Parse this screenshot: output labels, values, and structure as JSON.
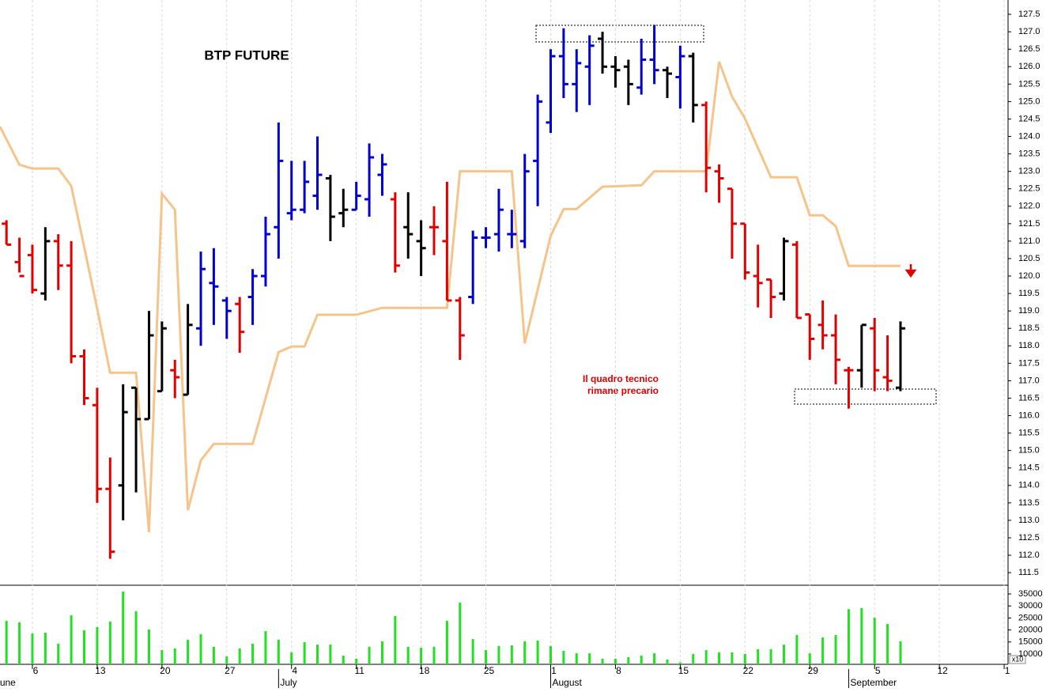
{
  "chart_data": [
    {
      "type": "ohlc",
      "title": "BTP FUTURE",
      "annotation": [
        "Il quadro tecnico",
        "rimane precario"
      ],
      "x": [
        -2,
        -1,
        0,
        1,
        2,
        3,
        4,
        5,
        6,
        7,
        8,
        9,
        10,
        11,
        12,
        13,
        14,
        15,
        16,
        17,
        18,
        19,
        20,
        21,
        22,
        23,
        24,
        25,
        26,
        27,
        28,
        29,
        30,
        31,
        32,
        33,
        34,
        35,
        36,
        37,
        38,
        39,
        40,
        41,
        42,
        43,
        44,
        45,
        46,
        47,
        48,
        49,
        50,
        51,
        52,
        53,
        54,
        55,
        56,
        57,
        58,
        59,
        60,
        61,
        62,
        63,
        64,
        65,
        66,
        67
      ],
      "open": [
        121.5,
        120.4,
        120.6,
        119.5,
        121.0,
        120.3,
        117.7,
        116.3,
        113.9,
        114.0,
        116.8,
        115.9,
        116.7,
        117.3,
        116.6,
        118.5,
        119.8,
        119.3,
        119.2,
        119.4,
        120.0,
        121.4,
        121.8,
        121.9,
        122.3,
        122.8,
        121.8,
        121.9,
        122.2,
        122.9,
        122.2,
        121.4,
        121.0,
        121.4,
        121.0,
        119.3,
        119.4,
        121.1,
        121.2,
        121.2,
        121.0,
        123.3,
        124.4,
        126.3,
        125.5,
        126.0,
        126.8,
        126.0,
        126.0,
        125.4,
        126.2,
        125.9,
        125.7,
        126.3,
        124.9,
        123.0,
        122.5,
        121.5,
        120.0,
        119.9,
        119.5,
        120.9,
        118.9,
        118.6,
        118.3,
        117.3,
        117.3,
        118.5,
        117.1,
        116.8
      ],
      "high": [
        121.6,
        121.1,
        120.9,
        121.4,
        121.2,
        121.0,
        117.9,
        116.8,
        114.8,
        116.9,
        116.8,
        119.0,
        118.7,
        117.6,
        119.2,
        120.7,
        120.8,
        119.4,
        119.4,
        120.2,
        121.7,
        124.4,
        123.3,
        123.3,
        124.0,
        122.9,
        122.5,
        122.7,
        123.8,
        123.5,
        122.4,
        122.4,
        121.6,
        122.0,
        122.7,
        119.4,
        121.3,
        121.4,
        122.5,
        121.9,
        123.5,
        125.2,
        126.5,
        127.1,
        126.5,
        126.9,
        127.0,
        126.3,
        126.2,
        126.8,
        127.2,
        126.0,
        126.6,
        126.4,
        125.0,
        123.2,
        122.5,
        121.5,
        120.9,
        119.9,
        121.1,
        121.0,
        118.9,
        119.3,
        118.9,
        117.4,
        118.6,
        118.8,
        118.3,
        118.7
      ],
      "low": [
        120.9,
        120.1,
        119.5,
        119.3,
        119.6,
        117.5,
        116.3,
        113.5,
        111.9,
        113.0,
        113.8,
        115.9,
        116.7,
        116.5,
        116.6,
        118.0,
        118.6,
        118.2,
        117.8,
        118.6,
        119.7,
        120.5,
        121.6,
        121.8,
        121.9,
        121.0,
        121.4,
        121.9,
        121.7,
        122.3,
        120.1,
        120.5,
        120.0,
        120.6,
        119.3,
        117.6,
        119.2,
        120.8,
        120.7,
        120.8,
        120.8,
        122.0,
        124.1,
        125.1,
        124.7,
        124.9,
        125.8,
        125.4,
        124.9,
        125.2,
        125.5,
        125.1,
        124.8,
        124.4,
        122.4,
        122.1,
        120.5,
        119.9,
        119.1,
        118.8,
        119.3,
        118.8,
        117.6,
        117.9,
        116.9,
        116.2,
        116.8,
        116.7,
        116.7,
        116.7
      ],
      "close": [
        120.9,
        120.0,
        119.6,
        121.0,
        120.3,
        117.7,
        116.5,
        113.9,
        112.1,
        116.1,
        115.9,
        118.3,
        118.5,
        117.1,
        118.6,
        120.2,
        119.7,
        119.0,
        118.4,
        120.0,
        121.2,
        123.3,
        121.9,
        122.7,
        122.9,
        121.7,
        121.9,
        122.3,
        123.4,
        123.2,
        120.3,
        121.2,
        120.8,
        121.4,
        119.3,
        118.3,
        121.1,
        121.1,
        121.9,
        121.2,
        123.0,
        125.0,
        126.3,
        125.5,
        126.1,
        126.6,
        126.0,
        125.9,
        125.5,
        126.2,
        125.9,
        125.8,
        126.3,
        124.9,
        123.1,
        122.8,
        121.5,
        120.1,
        119.8,
        119.4,
        121.0,
        118.8,
        118.2,
        118.3,
        117.6,
        117.3,
        118.6,
        117.3,
        117.0,
        118.5
      ],
      "colors": [
        "#e00000",
        "#e00000",
        "#e00000",
        "#000000",
        "#e00000",
        "#e00000",
        "#e00000",
        "#e00000",
        "#e00000",
        "#000000",
        "#000000",
        "#000000",
        "#000000",
        "#e00000",
        "#000000",
        "#0000d0",
        "#0000d0",
        "#0000d0",
        "#e00000",
        "#0000d0",
        "#0000d0",
        "#0000d0",
        "#0000d0",
        "#0000d0",
        "#0000d0",
        "#000000",
        "#000000",
        "#0000d0",
        "#0000d0",
        "#0000d0",
        "#e00000",
        "#000000",
        "#000000",
        "#e00000",
        "#e00000",
        "#e00000",
        "#0000d0",
        "#0000d0",
        "#0000d0",
        "#0000d0",
        "#0000d0",
        "#0000d0",
        "#0000d0",
        "#0000d0",
        "#0000d0",
        "#0000d0",
        "#000000",
        "#000000",
        "#000000",
        "#0000d0",
        "#0000d0",
        "#000000",
        "#0000d0",
        "#000000",
        "#e00000",
        "#e00000",
        "#e00000",
        "#e00000",
        "#e00000",
        "#e00000",
        "#000000",
        "#e00000",
        "#e00000",
        "#e00000",
        "#e00000",
        "#e00000",
        "#000000",
        "#e00000",
        "#e00000",
        "#000000"
      ],
      "line": {
        "color": "#f5c48a",
        "x": [
          -2.5,
          -1,
          0,
          2,
          3,
          5,
          6,
          8,
          9,
          10,
          11,
          12,
          13,
          14,
          17,
          19,
          20,
          21,
          22,
          25,
          27,
          32,
          33,
          37,
          38,
          40,
          41,
          42,
          44,
          47,
          48,
          52,
          53,
          54,
          55,
          57,
          59,
          60,
          61,
          62,
          63,
          67
        ],
        "values": [
          124.28,
          123.19,
          123.08,
          123.08,
          122.58,
          119.07,
          117.23,
          117.23,
          112.66,
          122.36,
          121.9,
          113.29,
          114.72,
          115.19,
          115.19,
          117.82,
          117.98,
          117.98,
          118.89,
          118.89,
          119.09,
          119.09,
          123.0,
          123.0,
          118.07,
          121.15,
          121.92,
          121.92,
          122.56,
          122.6,
          123.0,
          123.0,
          126.14,
          125.14,
          124.51,
          122.83,
          122.83,
          121.74,
          121.74,
          121.43,
          120.29,
          120.29
        ]
      },
      "xlim": [
        -2.5,
        75.3
      ],
      "xticks": [
        {
          "value": 0,
          "label": "6"
        },
        {
          "value": 5,
          "label": "13"
        },
        {
          "value": 10,
          "label": "20"
        },
        {
          "value": 15,
          "label": "27"
        },
        {
          "value": 20,
          "label": "4"
        },
        {
          "value": 25,
          "label": "11"
        },
        {
          "value": 30,
          "label": "18"
        },
        {
          "value": 35,
          "label": "25"
        },
        {
          "value": 40,
          "label": "1"
        },
        {
          "value": 45,
          "label": "8"
        },
        {
          "value": 50,
          "label": "15"
        },
        {
          "value": 55,
          "label": "22"
        },
        {
          "value": 60,
          "label": "29"
        },
        {
          "value": 65,
          "label": "5"
        },
        {
          "value": 70,
          "label": "12"
        },
        {
          "value": 75,
          "label": "1"
        }
      ],
      "months": [
        {
          "value": -3,
          "label": "June"
        },
        {
          "value": 19,
          "label": "July"
        },
        {
          "value": 40,
          "label": "August"
        },
        {
          "value": 63,
          "label": "September"
        }
      ],
      "ylim": [
        111.14,
        127.91
      ],
      "yticks": [
        {
          "value": 111.5,
          "label": "111.5"
        },
        {
          "value": 112,
          "label": "112.0"
        },
        112.5,
        {
          "value": 113,
          "label": "113.0"
        },
        113.5,
        {
          "value": 114,
          "label": "114.0"
        },
        114.5,
        {
          "value": 115,
          "label": "115.0"
        },
        115.5,
        {
          "value": 116,
          "label": "116.0"
        },
        116.5,
        {
          "value": 117,
          "label": "117.0"
        },
        117.5,
        {
          "value": 118,
          "label": "118.0"
        },
        118.5,
        {
          "value": 119,
          "label": "119.0"
        },
        119.5,
        {
          "value": 120,
          "label": "120.0"
        },
        120.5,
        {
          "value": 121,
          "label": "121.0"
        },
        121.5,
        {
          "value": 122,
          "label": "122.0"
        },
        122.5,
        {
          "value": 123,
          "label": "123.0"
        },
        123.5,
        {
          "value": 124,
          "label": "124.0"
        },
        124.5,
        {
          "value": 125,
          "label": "125.0"
        },
        125.5,
        {
          "value": 126,
          "label": "126.0"
        },
        126.5,
        {
          "value": 127,
          "label": "127.0"
        },
        127.5
      ]
    },
    {
      "type": "bar",
      "color": "#22e022",
      "unit_label": "x10",
      "x": [
        -2,
        -1,
        0,
        1,
        2,
        3,
        4,
        5,
        6,
        7,
        8,
        9,
        10,
        11,
        12,
        13,
        14,
        15,
        16,
        17,
        18,
        19,
        20,
        21,
        22,
        23,
        24,
        25,
        26,
        27,
        28,
        29,
        30,
        31,
        32,
        33,
        34,
        35,
        36,
        37,
        38,
        39,
        40,
        41,
        42,
        43,
        44,
        45,
        46,
        47,
        48,
        49,
        50,
        51,
        52,
        53,
        54,
        55,
        56,
        57,
        58,
        59,
        60,
        61,
        62,
        63,
        64,
        65,
        66,
        67
      ],
      "values": [
        23800,
        23200,
        18550,
        18900,
        14300,
        26100,
        19900,
        21200,
        23500,
        36000,
        27800,
        20200,
        11600,
        12300,
        15900,
        18200,
        13000,
        9000,
        12300,
        14300,
        19500,
        15900,
        10700,
        14900,
        13900,
        13900,
        9300,
        8000,
        13000,
        15300,
        25800,
        13000,
        12600,
        13000,
        23800,
        31400,
        16200,
        11600,
        13300,
        13600,
        15300,
        15600,
        13300,
        11300,
        10300,
        10300,
        8000,
        8000,
        8700,
        9300,
        10300,
        7700,
        6500,
        10000,
        11600,
        10700,
        10700,
        10000,
        12000,
        12000,
        13900,
        17900,
        10300,
        16900,
        17900,
        28700,
        29100,
        25100,
        22500,
        15300
      ],
      "xlim": [
        -2.5,
        75.3
      ],
      "ylim": [
        5700,
        38300
      ],
      "yticks": [
        10000,
        15000,
        20000,
        25000,
        30000,
        35000
      ]
    }
  ]
}
